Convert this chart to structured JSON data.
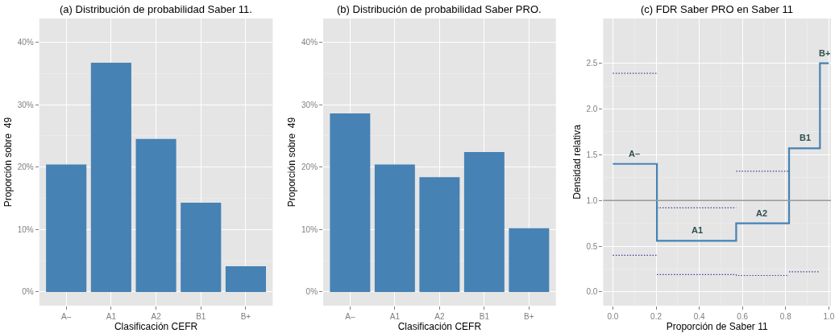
{
  "chart_data": [
    {
      "type": "bar",
      "title": "(a) Distribución de probabilidad Saber 11.",
      "xlabel": "Clasificación CEFR",
      "ylabel": "Proporción sobre  49",
      "categories": [
        "A–",
        "A1",
        "A2",
        "B1",
        "B+"
      ],
      "values": [
        20.4,
        36.7,
        24.5,
        14.3,
        4.1
      ],
      "color": "#4682b4",
      "ylim": [
        -2.2,
        43.8
      ],
      "yticks": [
        {
          "value": 0,
          "label": "0%"
        },
        {
          "value": 10,
          "label": "10%"
        },
        {
          "value": 20,
          "label": "20%"
        },
        {
          "value": 30,
          "label": "30%"
        },
        {
          "value": 40,
          "label": "40%"
        }
      ],
      "grid": true
    },
    {
      "type": "bar",
      "title": "(b) Distribución de probabilidad Saber PRO.",
      "xlabel": "Clasificación CEFR",
      "ylabel": "Proporción sobre  49",
      "categories": [
        "A–",
        "A1",
        "A2",
        "B1",
        "B+"
      ],
      "values": [
        28.6,
        20.4,
        18.4,
        22.4,
        10.2
      ],
      "color": "#4682b4",
      "ylim": [
        -2.2,
        43.8
      ],
      "yticks": [
        {
          "value": 0,
          "label": "0%"
        },
        {
          "value": 10,
          "label": "10%"
        },
        {
          "value": 20,
          "label": "20%"
        },
        {
          "value": 30,
          "label": "30%"
        },
        {
          "value": 40,
          "label": "40%"
        }
      ],
      "grid": true
    },
    {
      "type": "step",
      "title": "(c) FDR Saber PRO en Saber 11",
      "xlabel": "Proporción de Saber 11",
      "ylabel": "Densidad relativa",
      "xlim": [
        -0.045,
        1.01
      ],
      "ylim": [
        -0.15,
        2.99
      ],
      "xticks": [
        {
          "value": 0,
          "label": "0.0"
        },
        {
          "value": 0.2,
          "label": "0.2"
        },
        {
          "value": 0.4,
          "label": "0.4"
        },
        {
          "value": 0.6,
          "label": "0.6"
        },
        {
          "value": 0.8,
          "label": "0.8"
        },
        {
          "value": 1,
          "label": "1.0"
        }
      ],
      "yticks": [
        {
          "value": 0,
          "label": "0.0"
        },
        {
          "value": 0.5,
          "label": "0.5"
        },
        {
          "value": 1,
          "label": "1.0"
        },
        {
          "value": 1.5,
          "label": "1.5"
        },
        {
          "value": 2,
          "label": "2.0"
        },
        {
          "value": 2.5,
          "label": "2.5"
        }
      ],
      "grid": true,
      "series": [
        {
          "type": "line",
          "line_style": "dotted",
          "color": "#3f3f9f",
          "x": [
            0,
            0.204
          ],
          "values": [
            2.39,
            2.39
          ]
        },
        {
          "type": "line",
          "line_style": "dotted",
          "color": "#3f3f9f",
          "x": [
            0.204,
            0.571
          ],
          "values": [
            0.92,
            0.92
          ]
        },
        {
          "type": "line",
          "line_style": "dotted",
          "color": "#3f3f9f",
          "x": [
            0.571,
            0.816
          ],
          "values": [
            1.32,
            1.32
          ]
        },
        {
          "type": "line",
          "line_style": "dotted",
          "color": "#3f3f9f",
          "x": [
            0,
            0.204
          ],
          "values": [
            0.4,
            0.4
          ]
        },
        {
          "type": "line",
          "line_style": "dotted",
          "color": "#3f3f9f",
          "x": [
            0.204,
            0.57,
            0.572,
            0.816
          ],
          "values": [
            0.19,
            0.19,
            0.18,
            0.18
          ]
        },
        {
          "type": "line",
          "line_style": "dotted",
          "color": "#3f3f9f",
          "x": [
            0.816,
            0.959
          ],
          "values": [
            0.22,
            0.22
          ]
        },
        {
          "type": "step",
          "line_style": "solid",
          "color": "#4682b4",
          "x": [
            0,
            0.204,
            0.571,
            0.816,
            0.959,
            1.0
          ],
          "values": [
            1.4,
            0.56,
            0.75,
            1.57,
            2.5,
            2.5
          ]
        }
      ],
      "ref_lines": [
        {
          "axis": "y",
          "value": 1,
          "color": "#999999"
        }
      ],
      "annotations": [
        {
          "text": "A–",
          "x": 0.1,
          "y": 1.4
        },
        {
          "text": "A1",
          "x": 0.39,
          "y": 0.56
        },
        {
          "text": "A2",
          "x": 0.69,
          "y": 0.75
        },
        {
          "text": "B1",
          "x": 0.89,
          "y": 1.57
        },
        {
          "text": "B+",
          "x": 0.98,
          "y": 2.5
        }
      ]
    }
  ]
}
